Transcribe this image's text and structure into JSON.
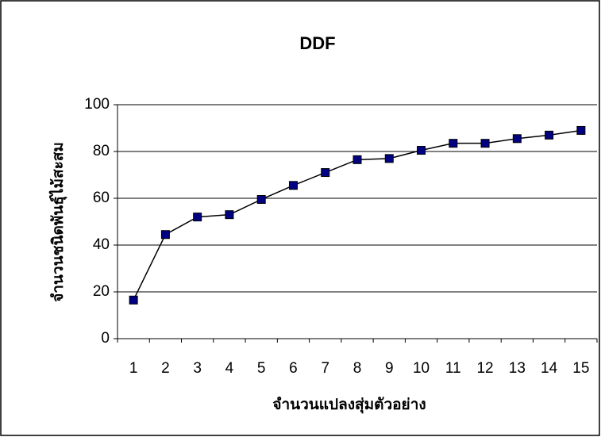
{
  "chart_data": {
    "type": "line",
    "title": "DDF",
    "x_label": "จำนวนแปลงสุ่มตัวอย่าง",
    "y_label": "จำนวนชนิดพันธุ์ไม้สะสม",
    "categories": [
      "1",
      "2",
      "3",
      "4",
      "5",
      "6",
      "7",
      "8",
      "9",
      "10",
      "11",
      "12",
      "13",
      "14",
      "15"
    ],
    "values": [
      16.5,
      44.5,
      52,
      53,
      59.5,
      65.5,
      71,
      76.5,
      77,
      80.5,
      83.5,
      83.5,
      85.5,
      87,
      89
    ],
    "color": "#000080",
    "line_color": "#000000",
    "ylim": [
      0,
      100
    ],
    "yticks": [
      0,
      20,
      40,
      60,
      80,
      100
    ],
    "grid": true
  }
}
